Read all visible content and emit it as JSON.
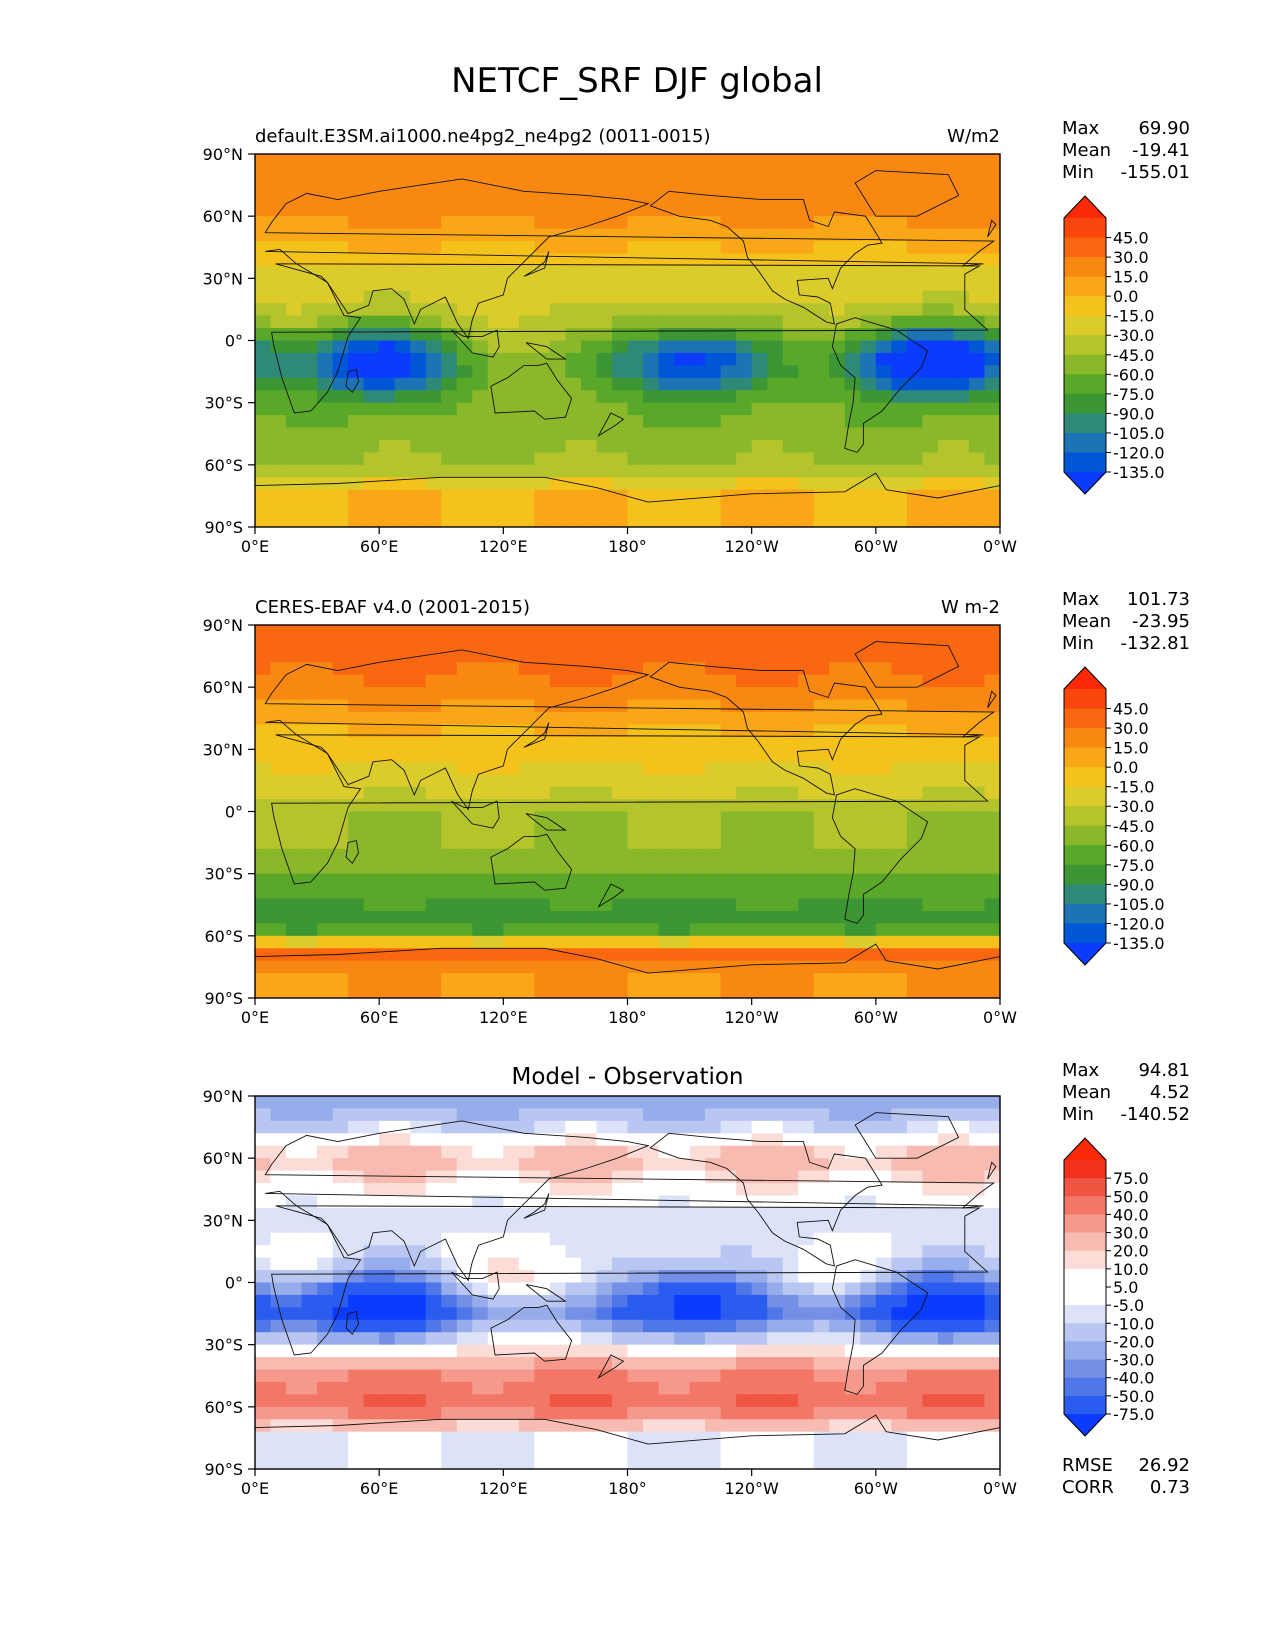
{
  "figure": {
    "title": "NETCF_SRF DJF global"
  },
  "axis_ticks": {
    "lat": [
      "90°N",
      "60°N",
      "30°N",
      "0°",
      "30°S",
      "60°S",
      "90°S"
    ],
    "lon": [
      "0°E",
      "60°E",
      "120°E",
      "180°",
      "120°W",
      "60°W",
      "0°W"
    ]
  },
  "colormaps": {
    "model_obs": {
      "colors": [
        "#0a3bff",
        "#0057d6",
        "#1c74b5",
        "#2e8a76",
        "#3b9633",
        "#5aa829",
        "#8bb82a",
        "#b3c42c",
        "#dbcc2b",
        "#f5c21c",
        "#f9a617",
        "#f98813",
        "#f96810",
        "#f9460c",
        "#fa2a08"
      ],
      "levels": [
        "45.0",
        "30.0",
        "15.0",
        "0.0",
        "-15.0",
        "-30.0",
        "-45.0",
        "-60.0",
        "-75.0",
        "-90.0",
        "-105.0",
        "-120.0",
        "-135.0"
      ]
    },
    "diff": {
      "colors": [
        "#0a3bff",
        "#2a5cf0",
        "#5077e8",
        "#7490e6",
        "#97aceb",
        "#b9c6f1",
        "#dce3f8",
        "#ffffff",
        "#ffffff",
        "#fbdcd6",
        "#f8bbb1",
        "#f5998c",
        "#f27766",
        "#ef5542",
        "#f2311e",
        "#fa2a08"
      ],
      "levels": [
        "75.0",
        "50.0",
        "40.0",
        "30.0",
        "20.0",
        "10.0",
        "5.0",
        "-5.0",
        "-10.0",
        "-20.0",
        "-30.0",
        "-40.0",
        "-50.0",
        "-75.0"
      ]
    }
  },
  "panels": [
    {
      "id": "model",
      "left_title": "default.E3SM.ai1000.ne4pg2_ne4pg2 (0011-0015)",
      "right_title": "W/m2",
      "center_title": "",
      "colormap": "model_obs",
      "stats": [
        {
          "label": "Max",
          "value": "69.90"
        },
        {
          "label": "Mean",
          "value": "-19.41"
        },
        {
          "label": "Min",
          "value": "-155.01"
        }
      ],
      "extra_stats": []
    },
    {
      "id": "obs",
      "left_title": "CERES-EBAF v4.0 (2001-2015)",
      "right_title": "W m-2",
      "center_title": "",
      "colormap": "model_obs",
      "stats": [
        {
          "label": "Max",
          "value": "101.73"
        },
        {
          "label": "Mean",
          "value": "-23.95"
        },
        {
          "label": "Min",
          "value": "-132.81"
        }
      ],
      "extra_stats": []
    },
    {
      "id": "diff",
      "left_title": "",
      "right_title": "",
      "center_title": "Model - Observation",
      "colormap": "diff",
      "stats": [
        {
          "label": "Max",
          "value": "94.81"
        },
        {
          "label": "Mean",
          "value": "4.52"
        },
        {
          "label": "Min",
          "value": "-140.52"
        }
      ],
      "extra_stats": [
        {
          "label": "RMSE",
          "value": "26.92"
        },
        {
          "label": "CORR",
          "value": "0.73"
        }
      ]
    }
  ],
  "chart_data": [
    {
      "type": "heatmap",
      "title": "default.E3SM.ai1000.ne4pg2_ne4pg2 (0011-0015)",
      "units": "W/m2",
      "xlim": [
        0,
        360
      ],
      "ylim": [
        -90,
        90
      ],
      "grid": false,
      "field_approx": {
        "lat": [
          80,
          60,
          30,
          10,
          -15,
          -40,
          -60,
          -75
        ],
        "zonal_mean_W_m2": [
          25,
          20,
          -20,
          -30,
          -45,
          -55,
          -45,
          0
        ],
        "minima": [
          {
            "lon": 60,
            "lat": -10,
            "value": -110
          },
          {
            "lon": 210,
            "lat": -10,
            "value": -100
          },
          {
            "lon": 325,
            "lat": -10,
            "value": -130
          }
        ]
      },
      "stats": {
        "Max": 69.9,
        "Mean": -19.41,
        "Min": -155.01
      }
    },
    {
      "type": "heatmap",
      "title": "CERES-EBAF v4.0 (2001-2015)",
      "units": "W m-2",
      "xlim": [
        0,
        360
      ],
      "ylim": [
        -90,
        90
      ],
      "grid": false,
      "field_approx": {
        "lat": [
          80,
          60,
          30,
          10,
          0,
          -15,
          -40,
          -55,
          -68,
          -80
        ],
        "zonal_mean_W_m2": [
          40,
          25,
          -10,
          -25,
          -45,
          -45,
          -70,
          -90,
          40,
          15
        ]
      },
      "stats": {
        "Max": 101.73,
        "Mean": -23.95,
        "Min": -132.81
      }
    },
    {
      "type": "heatmap",
      "title": "Model - Observation",
      "xlim": [
        0,
        360
      ],
      "ylim": [
        -90,
        90
      ],
      "grid": false,
      "field_approx": {
        "lat": [
          85,
          60,
          30,
          0,
          -15,
          -45,
          -60,
          -75
        ],
        "zonal_mean_W_m2": [
          -25,
          15,
          -10,
          10,
          -20,
          30,
          40,
          -5
        ],
        "minima": [
          {
            "lon": 60,
            "lat": -10,
            "value": -80
          },
          {
            "lon": 210,
            "lat": -8,
            "value": -75
          },
          {
            "lon": 330,
            "lat": -10,
            "value": -80
          }
        ]
      },
      "stats": {
        "Max": 94.81,
        "Mean": 4.52,
        "Min": -140.52,
        "RMSE": 26.92,
        "CORR": 0.73
      }
    }
  ]
}
